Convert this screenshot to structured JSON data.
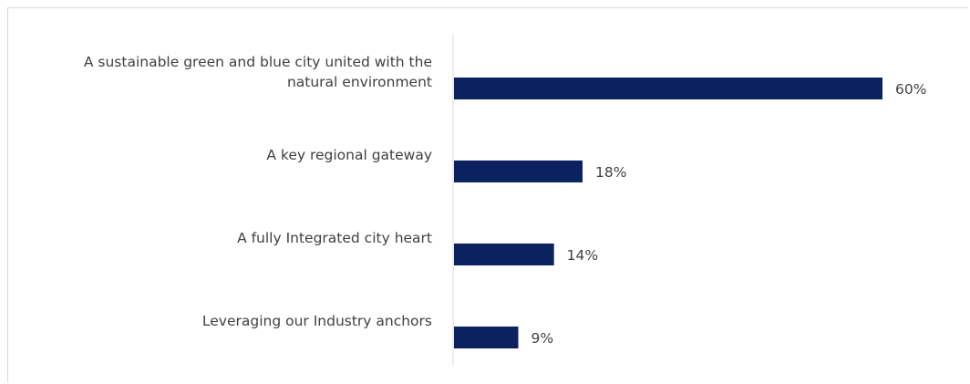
{
  "chart_data": {
    "type": "bar",
    "orientation": "horizontal",
    "categories": [
      [
        "A sustainable green and blue city united with the",
        "natural environment"
      ],
      [
        "A key regional gateway"
      ],
      [
        "A fully Integrated city heart"
      ],
      [
        "Leveraging our Industry anchors"
      ]
    ],
    "values": [
      60,
      18,
      14,
      9
    ],
    "value_labels": [
      "60%",
      "18%",
      "14%",
      "9%"
    ],
    "title": "",
    "xlabel": "",
    "ylabel": "",
    "xlim": [
      0,
      70
    ],
    "grid": false,
    "legend": "none",
    "bar_color": "#0b2260"
  }
}
